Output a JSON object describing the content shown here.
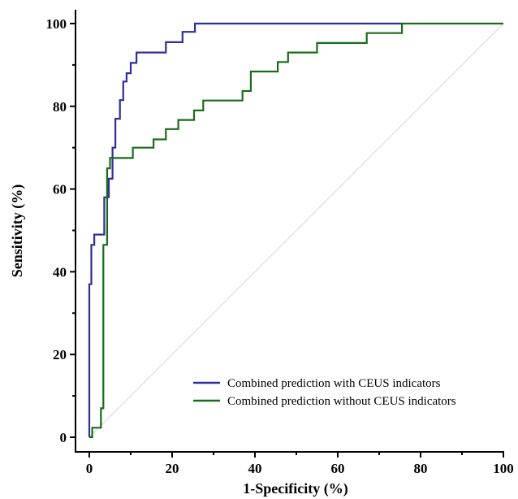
{
  "chart_data": {
    "type": "line",
    "xlabel": "1-Specificity (%)",
    "ylabel": "Sensitivity (%)",
    "xlim": [
      0,
      100
    ],
    "ylim": [
      0,
      100
    ],
    "x_ticks": [
      "0",
      "20",
      "40",
      "60",
      "80",
      "100"
    ],
    "y_ticks": [
      "0",
      "20",
      "40",
      "60",
      "80",
      "100"
    ],
    "legend_position": "bottom-right",
    "grid": false,
    "reference_line": {
      "from": [
        0,
        0
      ],
      "to": [
        100,
        100
      ],
      "color": "#d4d4d4"
    },
    "series": [
      {
        "name": "Combined prediction with CEUS indicators",
        "color": "#2e2e9a",
        "x": [
          0,
          0,
          0.5,
          0.5,
          1.2,
          1.2,
          2,
          2,
          3.6,
          3.6,
          4.7,
          4.7,
          5.6,
          5.6,
          6.3,
          6.3,
          7.4,
          7.4,
          8.2,
          8.2,
          9,
          9,
          10,
          10,
          11.4,
          11.4,
          18.5,
          18.5,
          22.5,
          22.5,
          25.5,
          25.5,
          75.5
        ],
        "y": [
          0,
          37,
          37,
          46.5,
          46.5,
          49,
          49,
          49,
          49,
          58,
          58,
          62.5,
          62.5,
          70,
          70,
          77,
          77,
          81.5,
          81.5,
          86,
          86,
          88,
          88,
          90.5,
          90.5,
          93,
          93,
          95.5,
          95.5,
          98,
          98,
          100,
          100
        ]
      },
      {
        "name": "Combined prediction without CEUS indicators",
        "color": "#1a6b1a",
        "x": [
          0,
          0.7,
          0.7,
          2.8,
          2.8,
          3.4,
          3.4,
          4.3,
          4.3,
          5,
          5,
          5.8,
          5.8,
          10.5,
          10.5,
          15.5,
          15.5,
          18.5,
          18.5,
          21.5,
          21.5,
          25.3,
          25.3,
          26,
          26,
          27.5,
          27.5,
          37,
          37,
          39,
          39,
          43,
          43,
          45.5,
          45.5,
          48,
          48,
          55,
          55,
          67,
          67,
          75.5,
          75.5,
          100
        ],
        "y": [
          0,
          0,
          2.3,
          2.3,
          7,
          7,
          46.5,
          46.5,
          65,
          65,
          67.5,
          67.5,
          67.5,
          67.5,
          70,
          70,
          72,
          72,
          74.5,
          74.5,
          76.7,
          76.7,
          79,
          79,
          79,
          79,
          81.4,
          81.4,
          83.7,
          83.7,
          88.4,
          88.4,
          88.4,
          88.4,
          90.7,
          90.7,
          93,
          93,
          95.3,
          95.3,
          97.7,
          97.7,
          100,
          100
        ]
      }
    ]
  }
}
